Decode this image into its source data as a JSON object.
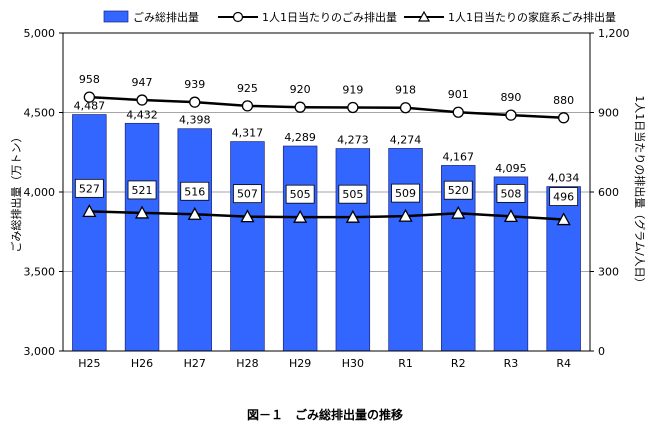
{
  "caption": "図－１　ごみ総排出量の推移",
  "chart_data": {
    "type": "bar",
    "categories": [
      "H25",
      "H26",
      "H27",
      "H28",
      "H29",
      "H30",
      "R1",
      "R2",
      "R3",
      "R4"
    ],
    "series": [
      {
        "name": "ごみ総排出量",
        "kind": "bar",
        "axis": "left",
        "color": "#3366ff",
        "values": [
          4487,
          4432,
          4398,
          4317,
          4289,
          4273,
          4274,
          4167,
          4095,
          4034
        ]
      },
      {
        "name": "1人1日当たりのごみ排出量",
        "kind": "line",
        "axis": "right",
        "marker": "circle",
        "color": "#000000",
        "values": [
          958,
          947,
          939,
          925,
          920,
          919,
          918,
          901,
          890,
          880
        ]
      },
      {
        "name": "1人1日当たりの家庭系ごみ排出量",
        "kind": "line",
        "axis": "right",
        "marker": "triangle",
        "color": "#000000",
        "values": [
          527,
          521,
          516,
          507,
          505,
          505,
          509,
          520,
          508,
          496
        ]
      }
    ],
    "ylabel": "ごみ総排出量（万トン）",
    "y2label": "1人1日当たりの排出量（グラム/人日）",
    "ylim": [
      3000,
      5000
    ],
    "y2lim": [
      0,
      1200
    ],
    "yticks": [
      "3,000",
      "3,500",
      "4,000",
      "4,500",
      "5,000"
    ],
    "y2ticks": [
      "0",
      "300",
      "600",
      "900",
      "1,200"
    ],
    "grid": true,
    "legend": "top"
  }
}
